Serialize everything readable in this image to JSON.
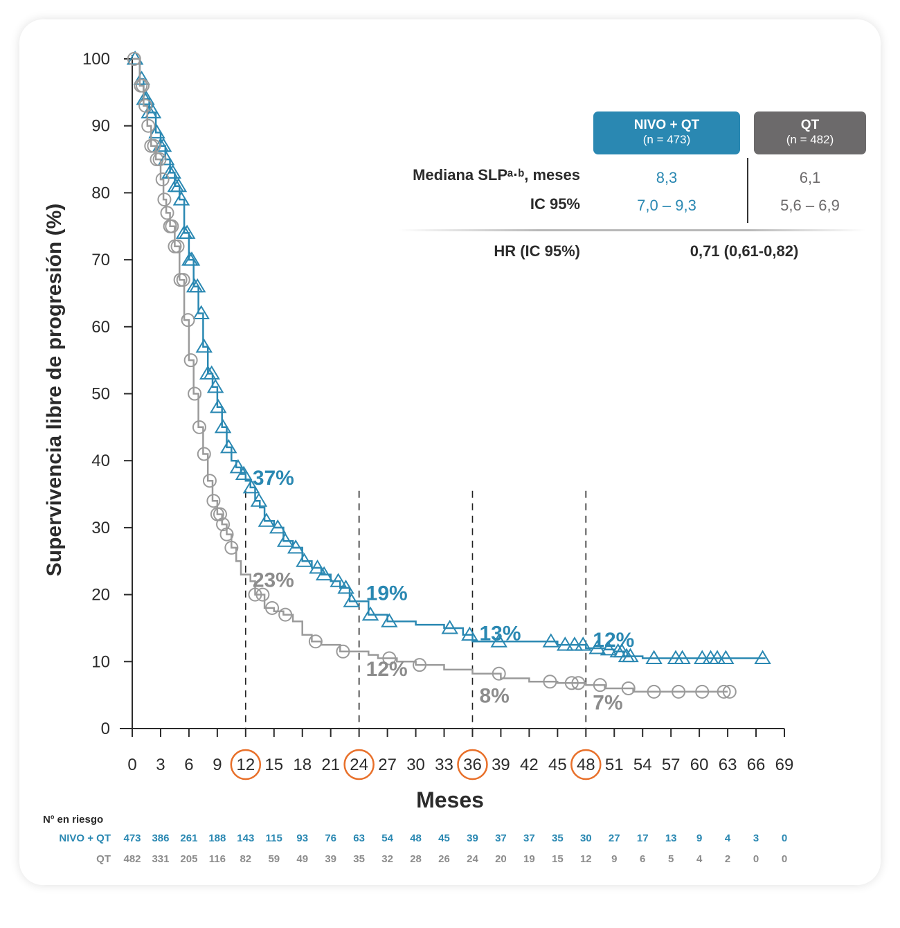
{
  "colors": {
    "nivo": "#2a88b2",
    "qt": "#9a9a9a",
    "qt_text": "#8c8c8c",
    "axis": "#2b2b2b",
    "highlight": "#e8702a"
  },
  "legend": {
    "nivo": {
      "title": "NIVO + QT",
      "n": "(n = 473)"
    },
    "qt": {
      "title": "QT",
      "n": "(n = 482)"
    }
  },
  "stats": {
    "median_label": "Mediana SLPᵃ·ᵇ, meses",
    "ci_label": "IC 95%",
    "nivo_median": "8,3",
    "nivo_ci": "7,0 – 9,3",
    "qt_median": "6,1",
    "qt_ci": "5,6 – 6,9",
    "hr_label": "HR (IC 95%)",
    "hr_value": "0,71 (0,61-0,82)"
  },
  "risk_table": {
    "title": "Nº en riesgo",
    "rows": [
      {
        "label": "NIVO + QT",
        "values": [
          "473",
          "386",
          "261",
          "188",
          "143",
          "115",
          "93",
          "76",
          "63",
          "54",
          "48",
          "45",
          "39",
          "37",
          "37",
          "35",
          "30",
          "27",
          "17",
          "13",
          "9",
          "4",
          "3",
          "0"
        ]
      },
      {
        "label": "QT",
        "values": [
          "482",
          "331",
          "205",
          "116",
          "82",
          "59",
          "49",
          "39",
          "35",
          "32",
          "28",
          "26",
          "24",
          "20",
          "19",
          "15",
          "12",
          "9",
          "6",
          "5",
          "4",
          "2",
          "0",
          "0"
        ]
      }
    ]
  },
  "chart_data": {
    "type": "line",
    "xlabel": "Meses",
    "ylabel": "Supervivencia libre de progresión (%)",
    "xlim": [
      0,
      69
    ],
    "ylim": [
      0,
      100
    ],
    "xticks": [
      0,
      3,
      6,
      9,
      12,
      15,
      18,
      21,
      24,
      27,
      30,
      33,
      36,
      39,
      42,
      45,
      48,
      51,
      54,
      57,
      60,
      63,
      66,
      69
    ],
    "yticks": [
      0,
      10,
      20,
      30,
      40,
      50,
      60,
      70,
      80,
      90,
      100
    ],
    "highlighted_xticks": [
      12,
      24,
      36,
      48
    ],
    "landmarks": [
      {
        "x": 12,
        "nivo": "37%",
        "qt": "23%"
      },
      {
        "x": 24,
        "nivo": "19%",
        "qt": "12%"
      },
      {
        "x": 36,
        "nivo": "13%",
        "qt": "8%"
      },
      {
        "x": 48,
        "nivo": "12%",
        "qt": "7%"
      }
    ],
    "series": [
      {
        "name": "NIVO + QT",
        "marker": "triangle",
        "points": [
          [
            0,
            100
          ],
          [
            0.8,
            97
          ],
          [
            1.2,
            94
          ],
          [
            1.8,
            92
          ],
          [
            2.5,
            89
          ],
          [
            3,
            87
          ],
          [
            3.5,
            85
          ],
          [
            4,
            83
          ],
          [
            4.5,
            81
          ],
          [
            5,
            79
          ],
          [
            5.5,
            74
          ],
          [
            6,
            70
          ],
          [
            6.5,
            66
          ],
          [
            7,
            62
          ],
          [
            7.5,
            57
          ],
          [
            8,
            53
          ],
          [
            8.5,
            51
          ],
          [
            9,
            48
          ],
          [
            9.5,
            45
          ],
          [
            10,
            42
          ],
          [
            10.5,
            40
          ],
          [
            11,
            39
          ],
          [
            11.5,
            38
          ],
          [
            12,
            37
          ],
          [
            12.5,
            36
          ],
          [
            13,
            34
          ],
          [
            13.5,
            33
          ],
          [
            14,
            31
          ],
          [
            15,
            30
          ],
          [
            16,
            28
          ],
          [
            17,
            27
          ],
          [
            18,
            25
          ],
          [
            19,
            24
          ],
          [
            20,
            23
          ],
          [
            21,
            22
          ],
          [
            22,
            21
          ],
          [
            23,
            19
          ],
          [
            24,
            19
          ],
          [
            25,
            17
          ],
          [
            27,
            16
          ],
          [
            30,
            15.5
          ],
          [
            33,
            15
          ],
          [
            35,
            14
          ],
          [
            36,
            13
          ],
          [
            39,
            13
          ],
          [
            42,
            13
          ],
          [
            45,
            12.5
          ],
          [
            48,
            12
          ],
          [
            50,
            11.8
          ],
          [
            51,
            11.5
          ],
          [
            52,
            10.8
          ],
          [
            54,
            10.5
          ],
          [
            66,
            10.5
          ],
          [
            67,
            10.5
          ]
        ],
        "censored": [
          0.3,
          1.0,
          1.3,
          1.5,
          1.8,
          2.2,
          2.6,
          3.0,
          3.3,
          3.6,
          4.0,
          4.3,
          4.6,
          4.9,
          5.2,
          5.5,
          5.8,
          6.1,
          6.3,
          6.6,
          6.9,
          7.3,
          7.6,
          8.0,
          8.4,
          8.8,
          9.1,
          9.6,
          10.2,
          11.2,
          11.8,
          12.6,
          13.4,
          14.2,
          15.4,
          16.2,
          17.3,
          18.2,
          19.6,
          20.3,
          21.8,
          22.6,
          23.2,
          25.2,
          27.2,
          33.6,
          35.7,
          38.8,
          44.3,
          45.8,
          46.8,
          47.7,
          49.2,
          50.4,
          51.4,
          51.8,
          52.3,
          52.7,
          55.2,
          57.5,
          58.2,
          60.3,
          61.2,
          61.9,
          62.8,
          66.7
        ]
      },
      {
        "name": "QT",
        "marker": "circle",
        "points": [
          [
            0,
            100
          ],
          [
            0.8,
            96
          ],
          [
            1.2,
            93
          ],
          [
            1.6,
            90
          ],
          [
            2,
            87
          ],
          [
            2.5,
            85
          ],
          [
            3,
            82
          ],
          [
            3.3,
            79
          ],
          [
            3.6,
            77
          ],
          [
            4,
            75
          ],
          [
            4.5,
            72
          ],
          [
            5,
            67
          ],
          [
            5.5,
            61
          ],
          [
            6,
            55
          ],
          [
            6.5,
            50
          ],
          [
            7,
            45
          ],
          [
            7.5,
            41
          ],
          [
            8,
            37
          ],
          [
            8.5,
            34
          ],
          [
            9,
            32
          ],
          [
            9.5,
            30.5
          ],
          [
            10,
            29
          ],
          [
            10.5,
            27
          ],
          [
            11,
            25
          ],
          [
            11.5,
            23
          ],
          [
            12,
            23
          ],
          [
            12.5,
            22
          ],
          [
            13,
            20
          ],
          [
            14,
            18
          ],
          [
            15,
            17.5
          ],
          [
            16,
            17
          ],
          [
            17,
            16
          ],
          [
            18,
            14
          ],
          [
            19,
            13
          ],
          [
            20,
            12.5
          ],
          [
            22,
            11.5
          ],
          [
            24,
            11.5
          ],
          [
            25,
            11
          ],
          [
            26,
            10.5
          ],
          [
            28,
            10
          ],
          [
            30,
            9.5
          ],
          [
            33,
            8.8
          ],
          [
            36,
            8.2
          ],
          [
            39,
            7.5
          ],
          [
            42,
            7
          ],
          [
            45,
            6.8
          ],
          [
            48,
            6.5
          ],
          [
            50,
            6
          ],
          [
            53,
            5.5
          ],
          [
            63,
            5.5
          ]
        ],
        "censored": [
          0.2,
          0.9,
          1.1,
          1.4,
          1.7,
          2.0,
          2.3,
          2.6,
          2.9,
          3.2,
          3.4,
          3.7,
          4.0,
          4.2,
          4.5,
          4.8,
          5.1,
          5.4,
          5.9,
          6.2,
          6.6,
          7.1,
          7.6,
          8.2,
          8.6,
          9.0,
          9.3,
          9.6,
          10.0,
          10.5,
          13.0,
          13.8,
          14.8,
          16.2,
          19.4,
          22.3,
          27.2,
          30.4,
          38.8,
          44.2,
          46.5,
          47.2,
          49.5,
          52.5,
          55.2,
          57.8,
          60.3,
          62.6,
          63.2
        ]
      }
    ]
  }
}
